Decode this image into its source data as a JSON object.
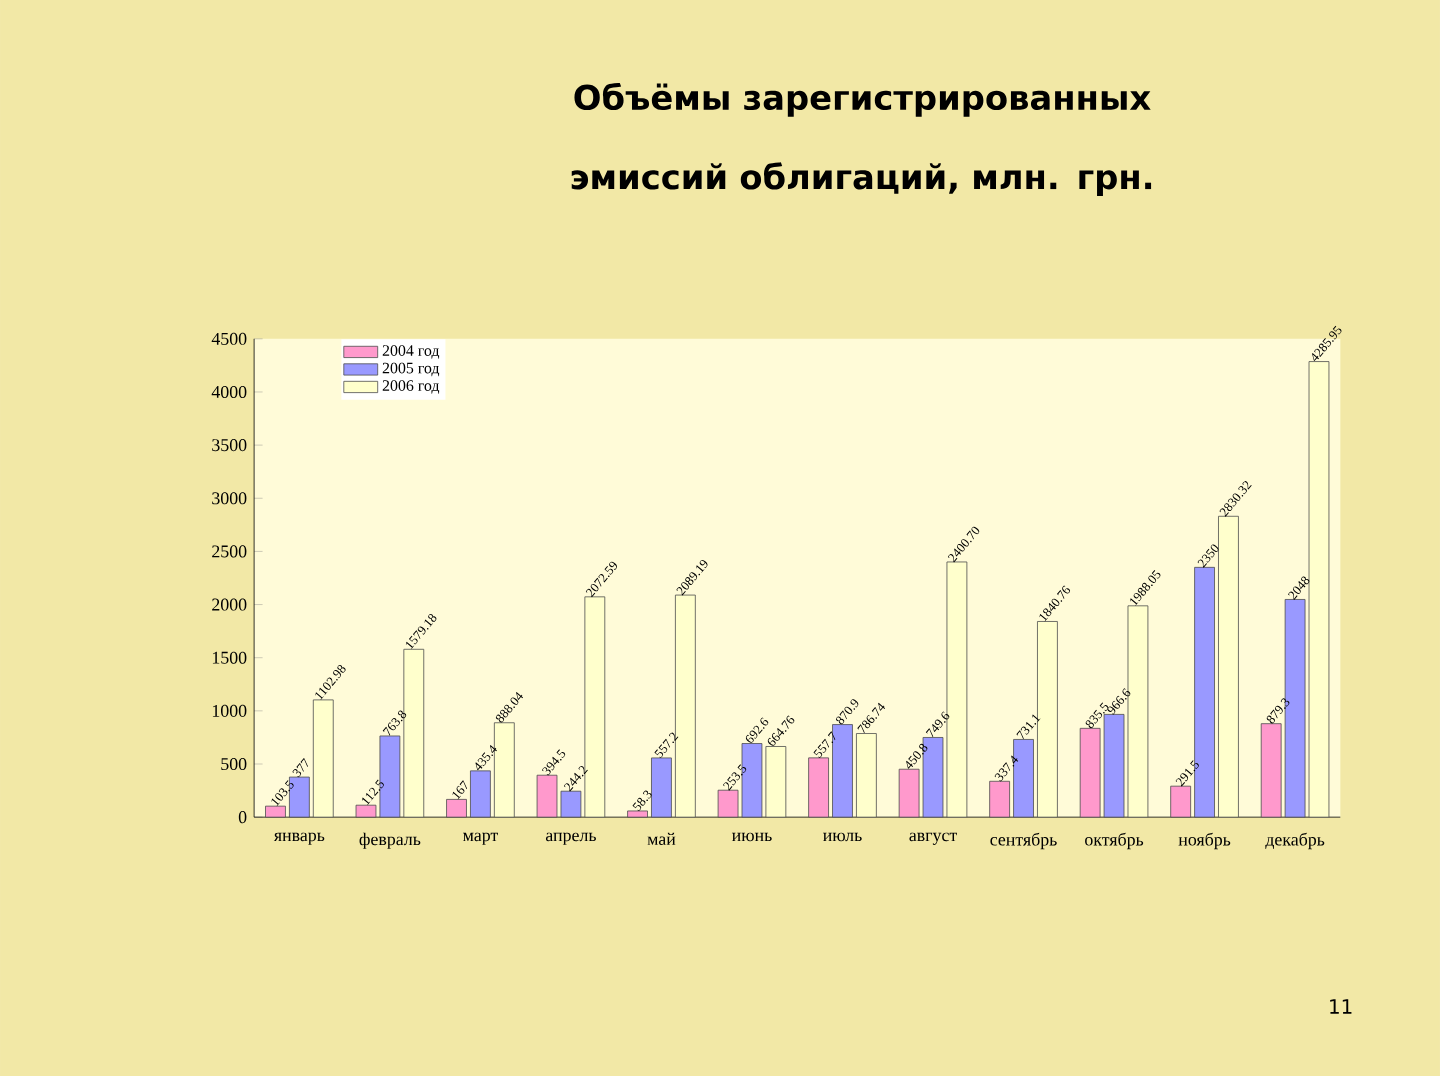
{
  "chart_data": {
    "type": "bar",
    "title": "Объёмы зарегистрированных эмиссий облигаций, млн. грн.",
    "categories": [
      "январь",
      "февраль",
      "март",
      "апрель",
      "май",
      "июнь",
      "июль",
      "август",
      "сентябрь",
      "октябрь",
      "ноябрь",
      "декабрь"
    ],
    "series": [
      {
        "name": "2004 год",
        "color": "#ff99cc",
        "values": [
          103.5,
          112.5,
          167,
          394.5,
          58.3,
          253.5,
          557.7,
          450.8,
          337.4,
          835.5,
          291.5,
          879.3
        ],
        "value_labels": [
          "103.5",
          "112.5",
          "167",
          "394.5",
          "58.3",
          "253.5",
          "557.7",
          "450.8",
          "337.4",
          "835.5",
          "291.5",
          "879.3"
        ]
      },
      {
        "name": "2005 год",
        "color": "#9999ff",
        "values": [
          377,
          763.8,
          435.4,
          244.2,
          557.2,
          692.6,
          870.9,
          749.6,
          731.1,
          966.6,
          2350,
          2048
        ],
        "value_labels": [
          "377",
          "763.8",
          "435.4",
          "244.2",
          "557.2",
          "692.6",
          "870.9",
          "749.6",
          "731.1",
          "966.6",
          "2350",
          "2048"
        ]
      },
      {
        "name": "2006 год",
        "color": "#ffffcc",
        "values": [
          1102.98,
          1579.18,
          888.04,
          2072.59,
          2089.19,
          664.76,
          786.74,
          2400.7,
          1840.76,
          1988.05,
          2830.32,
          4285.95
        ],
        "value_labels": [
          "1102.98",
          "1579.18",
          "888.04",
          "2072.59",
          "2089.19",
          "664.76",
          "786.74",
          "2400.70",
          "1840.76",
          "1988.05",
          "2830.32",
          "4285.95"
        ]
      }
    ],
    "ylim": [
      0,
      4500
    ],
    "yticks": [
      0,
      500,
      1000,
      1500,
      2000,
      2500,
      3000,
      3500,
      4000,
      4500
    ],
    "legend": "top left",
    "grid": false,
    "annotations": [
      "11"
    ]
  }
}
